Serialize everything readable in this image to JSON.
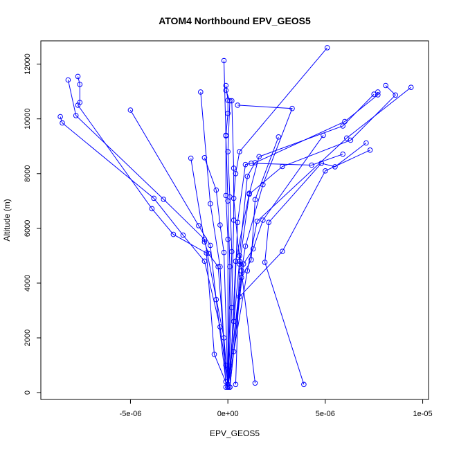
{
  "chart_data": {
    "type": "scatter",
    "title": "ATOM4 Northbound EPV_GEOS5",
    "xlabel": "EPV_GEOS5",
    "ylabel": "Altitude (m)",
    "xlim": [
      -9.6e-06,
      1.03e-05
    ],
    "ylim": [
      -250,
      12850
    ],
    "x_ticks": [
      {
        "value": -5e-06,
        "label": "-5e-06"
      },
      {
        "value": 0,
        "label": "0e+00"
      },
      {
        "value": 5e-06,
        "label": "5e-06"
      },
      {
        "value": 1e-05,
        "label": "1e-05"
      }
    ],
    "y_ticks": [
      {
        "value": 0,
        "label": "0"
      },
      {
        "value": 2000,
        "label": "2000"
      },
      {
        "value": 4000,
        "label": "4000"
      },
      {
        "value": 6000,
        "label": "6000"
      },
      {
        "value": 8000,
        "label": "8000"
      },
      {
        "value": 10000,
        "label": "10000"
      },
      {
        "value": 12000,
        "label": "12000"
      }
    ],
    "grid": false,
    "line_color": "#0000ff",
    "series": [
      {
        "points": [
          [
            -8.6e-06,
            10080
          ],
          [
            -8.5e-06,
            9850
          ],
          [
            -3.8e-06,
            7100
          ],
          [
            -2.3e-06,
            5750
          ],
          [
            -1.2e-06,
            4800
          ],
          [
            -4e-07,
            2400
          ],
          [
            0,
            300
          ],
          [
            0,
            200
          ]
        ]
      },
      {
        "points": [
          [
            -8.2e-06,
            11420
          ],
          [
            -7.8e-06,
            10120
          ],
          [
            -3.3e-06,
            7060
          ],
          [
            -1.2e-06,
            5600
          ],
          [
            -2e-07,
            2000
          ],
          [
            0,
            250
          ]
        ]
      },
      {
        "points": [
          [
            -7.7e-06,
            11550
          ],
          [
            -7.6e-06,
            11260
          ],
          [
            -7.6e-06,
            10600
          ],
          [
            -7.7e-06,
            10500
          ],
          [
            -3.9e-06,
            6720
          ],
          [
            -2.8e-06,
            5780
          ],
          [
            -1.1e-06,
            5100
          ],
          [
            -7e-07,
            1400
          ],
          [
            0,
            200
          ]
        ]
      },
      {
        "points": [
          [
            -5e-06,
            10320
          ],
          [
            -1.5e-06,
            6100
          ],
          [
            -9e-07,
            5380
          ],
          [
            -6e-07,
            3400
          ],
          [
            -1e-07,
            400
          ],
          [
            0,
            200
          ]
        ]
      },
      {
        "points": [
          [
            -1.9e-06,
            8560
          ],
          [
            -1.2e-06,
            5500
          ],
          [
            -1e-06,
            5080
          ],
          [
            -5e-07,
            4600
          ],
          [
            -1e-07,
            1000
          ],
          [
            0,
            200
          ]
        ]
      },
      {
        "points": [
          [
            -1.4e-06,
            10980
          ],
          [
            -9e-07,
            6900
          ],
          [
            -4e-07,
            4600
          ],
          [
            -1e-07,
            200
          ]
        ]
      },
      {
        "points": [
          [
            -1.2e-06,
            8580
          ],
          [
            -6e-07,
            7400
          ],
          [
            -4e-07,
            6120
          ],
          [
            -2e-07,
            5120
          ],
          [
            0,
            200
          ]
        ]
      },
      {
        "points": [
          [
            -2e-07,
            12130
          ],
          [
            -1e-07,
            9400
          ],
          [
            -1e-07,
            7200
          ],
          [
            0,
            5600
          ],
          [
            0,
            200
          ]
        ]
      },
      {
        "points": [
          [
            -1e-07,
            11220
          ],
          [
            0,
            10680
          ],
          [
            0,
            10200
          ],
          [
            -1e-07,
            9380
          ],
          [
            0,
            7000
          ],
          [
            1e-07,
            4600
          ],
          [
            0,
            200
          ]
        ]
      },
      {
        "points": [
          [
            -1e-07,
            11040
          ],
          [
            1e-07,
            10660
          ],
          [
            0,
            8800
          ],
          [
            1e-07,
            7150
          ],
          [
            2e-07,
            5150
          ],
          [
            0,
            200
          ]
        ]
      },
      {
        "points": [
          [
            2e-07,
            10660
          ],
          [
            3e-07,
            8200
          ],
          [
            3e-07,
            6300
          ],
          [
            2e-07,
            3100
          ],
          [
            0,
            200
          ]
        ]
      },
      {
        "points": [
          [
            5e-07,
            10500
          ],
          [
            3.3e-06,
            10380
          ],
          [
            1.8e-06,
            7600
          ],
          [
            9e-07,
            5350
          ],
          [
            7e-07,
            4450
          ],
          [
            0,
            200
          ]
        ]
      },
      {
        "points": [
          [
            5.1e-06,
            12600
          ],
          [
            6e-07,
            8800
          ],
          [
            4e-07,
            8000
          ],
          [
            3e-07,
            7100
          ],
          [
            6e-07,
            4800
          ],
          [
            0,
            200
          ]
        ]
      },
      {
        "points": [
          [
            2.6e-06,
            9340
          ],
          [
            1.4e-06,
            7050
          ],
          [
            1.2e-06,
            4850
          ],
          [
            7e-07,
            4200
          ],
          [
            0,
            200
          ]
        ]
      },
      {
        "points": [
          [
            4.9e-06,
            9400
          ],
          [
            1.8e-06,
            6300
          ],
          [
            1.3e-06,
            5250
          ],
          [
            8e-07,
            4700
          ],
          [
            1e-07,
            200
          ]
        ]
      },
      {
        "points": [
          [
            9.4e-06,
            11150
          ],
          [
            6.1e-06,
            9300
          ],
          [
            1.5e-06,
            6260
          ],
          [
            1e-06,
            4450
          ],
          [
            3e-07,
            1500
          ],
          [
            0,
            200
          ]
        ]
      },
      {
        "points": [
          [
            8.1e-06,
            11220
          ],
          [
            8.6e-06,
            10870
          ],
          [
            6.3e-06,
            9220
          ],
          [
            2.8e-06,
            8260
          ],
          [
            1.1e-06,
            7250
          ],
          [
            6e-07,
            4700
          ],
          [
            4e-07,
            300
          ]
        ]
      },
      {
        "points": [
          [
            7.7e-06,
            10980
          ],
          [
            7.7e-06,
            10880
          ],
          [
            6e-06,
            9900
          ],
          [
            1.4e-06,
            8400
          ],
          [
            1e-06,
            7900
          ],
          [
            6e-07,
            5000
          ],
          [
            1.4e-06,
            350
          ]
        ]
      },
      {
        "points": [
          [
            7.5e-06,
            10900
          ],
          [
            5.9e-06,
            9740
          ],
          [
            1.6e-06,
            8620
          ],
          [
            1.1e-06,
            7280
          ],
          [
            4e-07,
            4800
          ],
          [
            1e-07,
            200
          ]
        ]
      },
      {
        "points": [
          [
            7.1e-06,
            9120
          ],
          [
            5.5e-06,
            8250
          ],
          [
            4.8e-06,
            8380
          ],
          [
            2.1e-06,
            6220
          ],
          [
            1.9e-06,
            4760
          ],
          [
            3.9e-06,
            300
          ]
        ]
      },
      {
        "points": [
          [
            7.3e-06,
            8860
          ],
          [
            5e-06,
            8100
          ],
          [
            2.8e-06,
            5160
          ],
          [
            6e-07,
            3500
          ],
          [
            1e-07,
            200
          ]
        ]
      },
      {
        "points": [
          [
            5.9e-06,
            8710
          ],
          [
            4.3e-06,
            8310
          ],
          [
            1.2e-06,
            8380
          ],
          [
            9e-07,
            8330
          ],
          [
            5e-07,
            6220
          ],
          [
            3e-07,
            2600
          ],
          [
            0,
            200
          ]
        ]
      }
    ]
  }
}
